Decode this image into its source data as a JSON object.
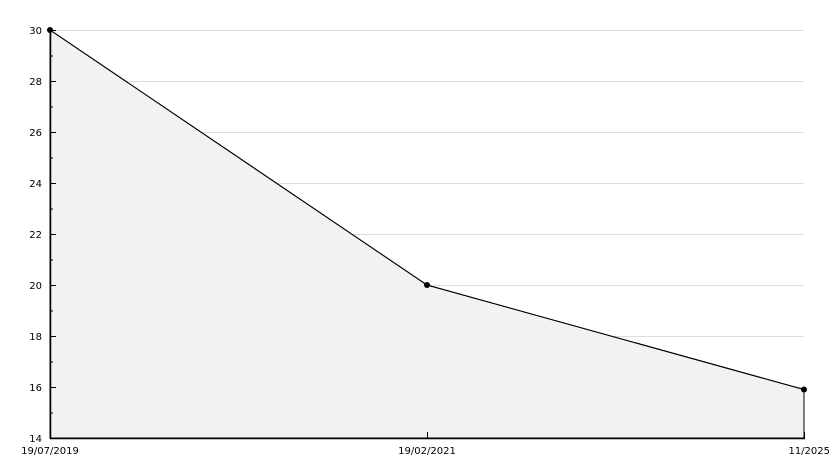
{
  "chart_data": {
    "type": "area",
    "title": "",
    "xlabel": "",
    "ylabel": "",
    "categories": [
      "19/07/2019",
      "19/02/2021",
      "11/2025"
    ],
    "values": [
      30,
      20,
      15.9
    ],
    "ylim": [
      14,
      30
    ],
    "yticks": [
      14,
      16,
      18,
      20,
      22,
      24,
      26,
      28,
      30
    ],
    "grid": true,
    "legend": "none",
    "colors": {
      "line": "#000000",
      "fill": "#f2f2f2",
      "grid": "#dddddd",
      "axis": "#000000"
    }
  }
}
